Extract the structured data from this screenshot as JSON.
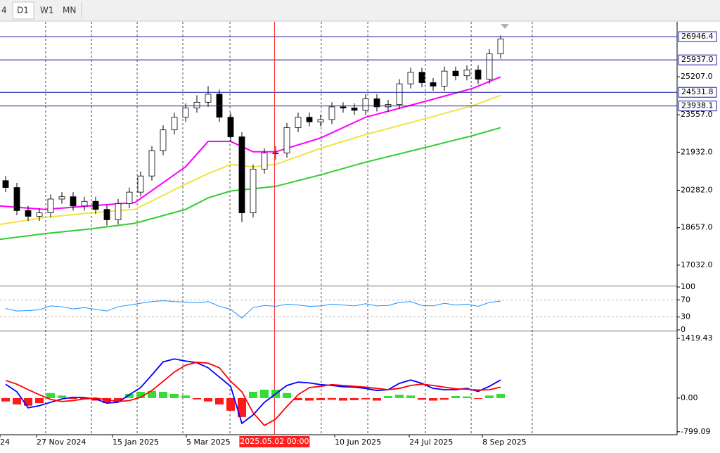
{
  "toolbar": {
    "tabs": [
      "4",
      "D1",
      "W1",
      "MN"
    ]
  },
  "chart_data": [
    {
      "type": "candlestick",
      "x": [
        0,
        1,
        2,
        3,
        4,
        5,
        6,
        7,
        8,
        9,
        10,
        11,
        12,
        13,
        14,
        15,
        16,
        17,
        18,
        19,
        20,
        21,
        22,
        23,
        24,
        25,
        26,
        27,
        28,
        29,
        30,
        31,
        32,
        33,
        34,
        35,
        36,
        37,
        38,
        39,
        40,
        41,
        42,
        43,
        44
      ],
      "open": [
        20700,
        20400,
        19400,
        19150,
        19300,
        19900,
        20000,
        19600,
        19800,
        19450,
        19000,
        19700,
        20200,
        20900,
        22000,
        22900,
        23450,
        23850,
        24100,
        24450,
        23450,
        22600,
        19300,
        21200,
        21900,
        21900,
        23000,
        23450,
        23250,
        23350,
        23900,
        23850,
        23750,
        24250,
        23900,
        24000,
        24900,
        25400,
        24950,
        24800,
        25450,
        25250,
        25500,
        25100,
        26200
      ],
      "high": [
        20900,
        20600,
        19600,
        19500,
        20100,
        20200,
        20200,
        20000,
        20000,
        19650,
        19900,
        20400,
        21100,
        22200,
        23100,
        23650,
        24050,
        24400,
        24800,
        24650,
        23650,
        22800,
        21400,
        22100,
        22200,
        23200,
        23650,
        23650,
        23550,
        24100,
        24100,
        24050,
        24450,
        24450,
        24200,
        25100,
        25600,
        25600,
        25150,
        25650,
        25650,
        25700,
        25700,
        26400,
        27000
      ],
      "low": [
        20200,
        19200,
        18950,
        18950,
        19100,
        19700,
        19400,
        19400,
        19250,
        18750,
        18800,
        19500,
        20000,
        20700,
        21800,
        22700,
        23250,
        23650,
        23900,
        23250,
        22400,
        18900,
        19100,
        21000,
        21600,
        21700,
        22800,
        23050,
        23050,
        23150,
        23650,
        23550,
        23550,
        23700,
        23700,
        23800,
        24700,
        24750,
        24600,
        24600,
        25050,
        25050,
        24900,
        24900,
        26000
      ],
      "close": [
        20400,
        19400,
        19150,
        19300,
        19900,
        20000,
        19600,
        19800,
        19450,
        19000,
        19700,
        20200,
        20900,
        22000,
        22900,
        23450,
        23850,
        24100,
        24450,
        23450,
        22600,
        19300,
        21200,
        21900,
        21900,
        23000,
        23450,
        23250,
        23350,
        23900,
        23850,
        23750,
        24250,
        23900,
        24000,
        24900,
        25400,
        24950,
        24800,
        25450,
        25250,
        25500,
        25100,
        26200,
        26850
      ],
      "color_up": "#ffffff",
      "color_down": "#000000",
      "outline": "#000000",
      "overlays": [
        {
          "color": "#ff00ff",
          "x": [
            -0.5,
            3.5,
            7.5,
            11.5,
            16,
            18,
            20,
            22,
            24,
            28,
            32,
            37,
            41.5,
            44
          ],
          "values": [
            19600,
            19450,
            19600,
            19750,
            21300,
            22400,
            22400,
            21950,
            21950,
            22550,
            23450,
            24100,
            24700,
            25200
          ]
        },
        {
          "color": "#f0e442",
          "x": [
            -0.5,
            3.5,
            7.5,
            11.5,
            16,
            18,
            20,
            22,
            24,
            28,
            32,
            37,
            41.5,
            44
          ],
          "values": [
            18800,
            19100,
            19300,
            19450,
            20550,
            21000,
            21400,
            21300,
            21400,
            22100,
            22700,
            23350,
            23950,
            24400
          ]
        },
        {
          "color": "#32cd32",
          "x": [
            -0.5,
            3.5,
            7.5,
            11.5,
            16,
            18,
            20,
            22,
            24,
            28,
            32,
            37,
            41.5,
            44
          ],
          "values": [
            18150,
            18400,
            18600,
            18850,
            19450,
            19950,
            20250,
            20350,
            20450,
            20950,
            21500,
            22100,
            22650,
            23000
          ]
        }
      ],
      "levels": [
        26946.4,
        {
          "value": 25937.0,
          "label": "25937.0"
        },
        24531.8,
        23938.1
      ],
      "level_color": "#1a1aa6",
      "xlim": [
        -0.5,
        59.6875
      ],
      "ylim": [
        16175,
        27560
      ],
      "yticks": [
        {
          "value": 25207.0,
          "label": "25207.0"
        },
        {
          "value": 23557.0,
          "label": "23557.0"
        },
        {
          "value": 21932.0,
          "label": "21932.0"
        },
        {
          "value": 20282.0,
          "label": "20282.0"
        },
        {
          "value": 18657.0,
          "label": "18657.0"
        },
        {
          "value": 17032.0,
          "label": "17032.0"
        }
      ],
      "xticks": [
        {
          "value": -0.5,
          "label": "24"
        },
        {
          "value": 2.75,
          "label": "27 Nov 2024"
        },
        {
          "value": 9.5,
          "label": "15 Jan 2025"
        },
        {
          "value": 16.06,
          "label": "5 Mar 2025"
        },
        {
          "value": 29.25,
          "label": "10 Jun 2025"
        },
        {
          "value": 35.88,
          "label": "24 Jul 2025"
        },
        {
          "value": 42.38,
          "label": "8 Sep 2025"
        }
      ],
      "xgrid": [
        3.56,
        7.63,
        11.69,
        15.75,
        19.94,
        28.06,
        32.19,
        37.31,
        41.38,
        46.81
      ],
      "crosshair": {
        "value": 23.9,
        "label": "2025.05.02 00:00",
        "color": "#ff2020"
      },
      "grid": false
    },
    {
      "type": "line",
      "x": [
        0,
        1,
        2,
        3,
        4,
        5,
        6,
        7,
        8,
        9,
        10,
        11,
        12,
        13,
        14,
        15,
        16,
        17,
        18,
        19,
        20,
        21,
        22,
        23,
        24,
        25,
        26,
        27,
        28,
        29,
        30,
        31,
        32,
        33,
        34,
        35,
        36,
        37,
        38,
        39,
        40,
        41,
        42,
        43,
        44
      ],
      "values": [
        50,
        44,
        45,
        47,
        56,
        54,
        49,
        52,
        48,
        44,
        54,
        58,
        62,
        66,
        68,
        66,
        65,
        63,
        66,
        55,
        48,
        28,
        52,
        57,
        55,
        60,
        58,
        55,
        56,
        60,
        58,
        56,
        61,
        56,
        57,
        64,
        66,
        57,
        56,
        62,
        58,
        60,
        55,
        64,
        67
      ],
      "color": "#1e90ff",
      "ylim": [
        0,
        100
      ],
      "yticks": [
        100,
        70,
        30,
        0
      ],
      "grid": true
    },
    {
      "type": "bar",
      "x": [
        0,
        1,
        2,
        3,
        4,
        5,
        6,
        7,
        8,
        9,
        10,
        11,
        12,
        13,
        14,
        15,
        16,
        17,
        18,
        19,
        20,
        21,
        22,
        23,
        24,
        25,
        26,
        27,
        28,
        29,
        30,
        31,
        32,
        33,
        34,
        35,
        36,
        37,
        38,
        39,
        40,
        41,
        42,
        43,
        44
      ],
      "values": [
        -80,
        -150,
        -180,
        -120,
        120,
        60,
        -20,
        -30,
        -60,
        -120,
        -90,
        100,
        150,
        170,
        150,
        100,
        60,
        -30,
        -80,
        -150,
        -300,
        -450,
        150,
        200,
        200,
        120,
        -50,
        -60,
        -50,
        -40,
        -60,
        -50,
        -30,
        -60,
        50,
        80,
        60,
        -40,
        -60,
        -40,
        50,
        40,
        -20,
        60,
        100
      ],
      "color_up": "#33dd33",
      "color_down": "#ff1a1a",
      "lines": [
        {
          "color": "#0000ff",
          "values": [
            330,
            150,
            -230,
            -180,
            -100,
            -20,
            20,
            10,
            -20,
            -120,
            -100,
            80,
            250,
            550,
            860,
            930,
            880,
            840,
            720,
            500,
            280,
            -600,
            -400,
            -100,
            100,
            300,
            380,
            360,
            320,
            300,
            270,
            260,
            230,
            180,
            200,
            350,
            430,
            350,
            230,
            200,
            200,
            230,
            160,
            280,
            430
          ]
        },
        {
          "color": "#ff0000",
          "values": [
            420,
            330,
            200,
            80,
            -30,
            -80,
            -60,
            -20,
            0,
            -40,
            -80,
            -60,
            20,
            180,
            400,
            620,
            780,
            850,
            830,
            720,
            400,
            150,
            -350,
            -650,
            -500,
            -200,
            80,
            250,
            280,
            320,
            300,
            280,
            260,
            230,
            200,
            230,
            300,
            330,
            300,
            260,
            220,
            210,
            190,
            200,
            260
          ]
        }
      ],
      "ylim": [
        -870,
        1570
      ],
      "yticks": [
        {
          "value": 1419.43,
          "label": "1419.43"
        },
        {
          "value": 0,
          "label": "0.00"
        },
        {
          "value": -799.09,
          "label": "-799.09"
        }
      ],
      "grid": false
    }
  ]
}
